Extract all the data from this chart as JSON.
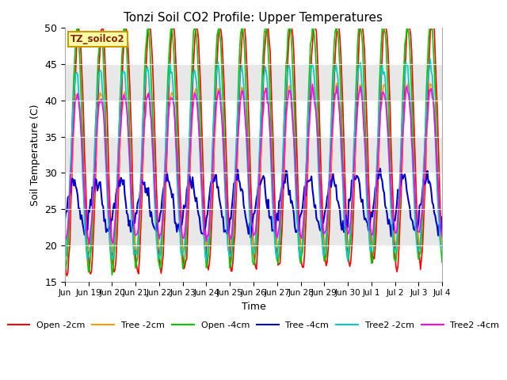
{
  "title": "Tonzi Soil CO2 Profile: Upper Temperatures",
  "ylabel": "Soil Temperature (C)",
  "xlabel": "Time",
  "label_box_text": "TZ_soilco2",
  "ylim": [
    15,
    50
  ],
  "series": {
    "Open -2cm": {
      "color": "#ff0000",
      "lw": 1.2
    },
    "Tree -2cm": {
      "color": "#ff9900",
      "lw": 1.2
    },
    "Open -4cm": {
      "color": "#00cc00",
      "lw": 1.2
    },
    "Tree -4cm": {
      "color": "#0000cc",
      "lw": 1.5
    },
    "Tree2 -2cm": {
      "color": "#00cccc",
      "lw": 1.2
    },
    "Tree2 -4cm": {
      "color": "#ff00ff",
      "lw": 1.2
    }
  },
  "legend_order": [
    "Open -2cm",
    "Tree -2cm",
    "Open -4cm",
    "Tree -4cm",
    "Tree2 -2cm",
    "Tree2 -4cm"
  ],
  "xtick_labels": [
    "Jun",
    "Jun 19",
    "Jun 20",
    "Jun 21",
    "Jun 22",
    "Jun 23",
    "Jun 24",
    "Jun 25",
    "Jun 26",
    "Jun 27",
    "Jun 28",
    "Jun 29",
    "Jun 30",
    "Jul 1",
    "Jul 2",
    "Jul 3",
    "Jul 4"
  ],
  "ytick_labels": [
    15,
    20,
    25,
    30,
    35,
    40,
    45,
    50
  ],
  "bg_color": "#ffffff",
  "band_color": "#e8e8e8",
  "band_ranges": [
    [
      20,
      25
    ],
    [
      30,
      35
    ],
    [
      40,
      45
    ]
  ]
}
